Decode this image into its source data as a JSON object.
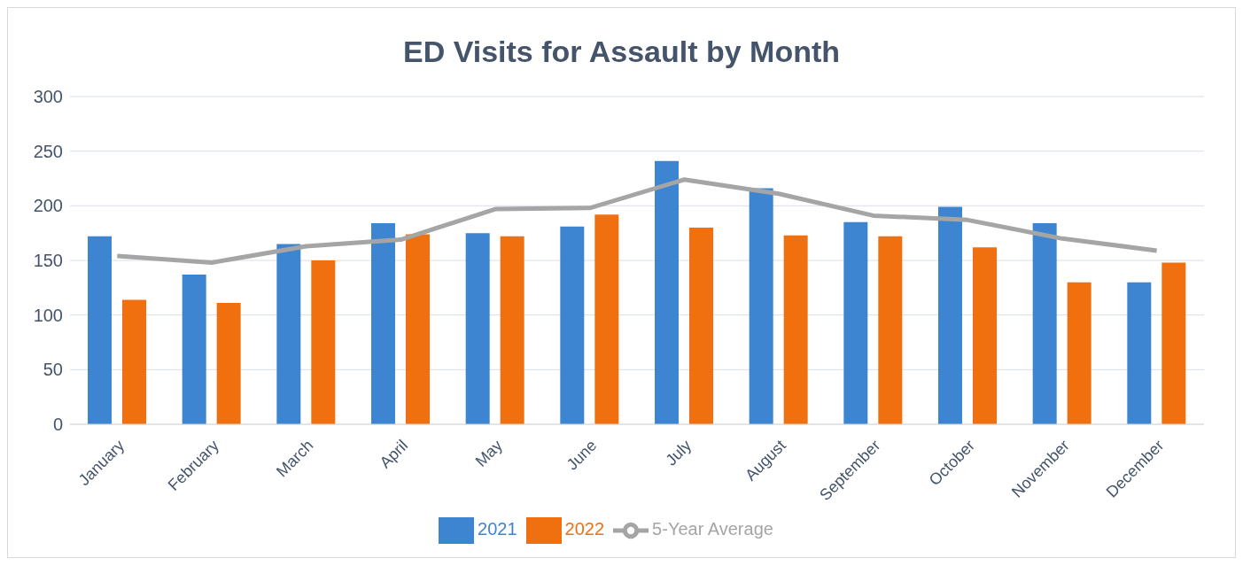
{
  "chart_data": {
    "type": "bar",
    "title": "ED Visits for Assault by Month",
    "categories": [
      "January",
      "February",
      "March",
      "April",
      "May",
      "June",
      "July",
      "August",
      "September",
      "October",
      "November",
      "December"
    ],
    "series": [
      {
        "name": "2021",
        "color": "#3d85d1",
        "values": [
          172,
          137,
          165,
          184,
          175,
          181,
          241,
          216,
          185,
          199,
          184,
          130
        ]
      },
      {
        "name": "2022",
        "color": "#f0700f",
        "values": [
          114,
          111,
          150,
          174,
          172,
          192,
          180,
          173,
          172,
          162,
          130,
          148
        ]
      },
      {
        "name": "5-Year Average",
        "type": "line",
        "color": "#a5a5a5",
        "values": [
          154,
          148,
          163,
          169,
          197,
          198,
          224,
          211,
          191,
          187,
          170,
          159
        ]
      }
    ],
    "ylim": [
      0,
      300
    ],
    "yticks": [
      0,
      50,
      100,
      150,
      200,
      250,
      300
    ],
    "grid": "y",
    "legend": "bottom",
    "marker": "none"
  }
}
